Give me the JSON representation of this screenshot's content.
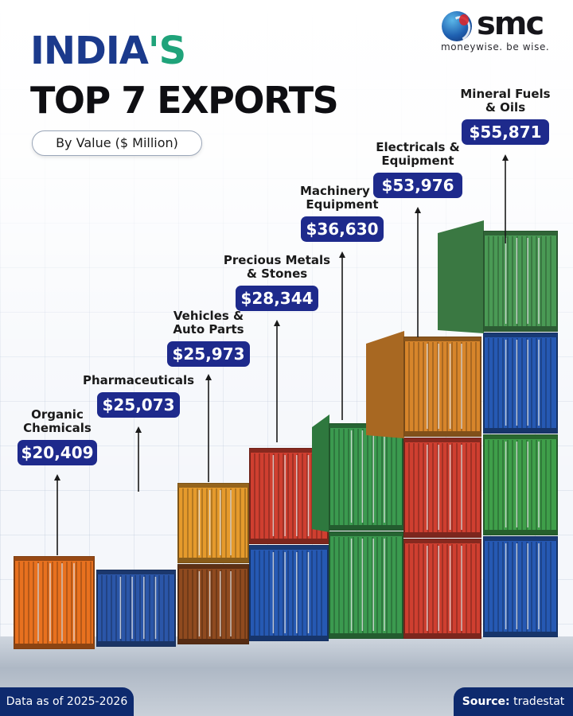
{
  "header": {
    "title_main": "INDIA",
    "title_possessive": "'S",
    "title_line2": "TOP 7 EXPORTS",
    "subtitle": "By Value ($ Million)"
  },
  "brand": {
    "name": "smc",
    "tagline": "moneywise. be wise."
  },
  "footer": {
    "data_note": "Data as of 2025-2026",
    "source_label": "Source:",
    "source_value": "tradestat"
  },
  "colors": {
    "navy": "#0e2a6e",
    "label_box": "#1e2a8c",
    "title_blue": "#1b3a8c",
    "title_green": "#1fa37a"
  },
  "chart_data": {
    "type": "bar",
    "title": "INDIA'S TOP 7 EXPORTS",
    "subtitle": "By Value ($ Million)",
    "categories": [
      [
        "Organic",
        "Chemicals"
      ],
      [
        "Pharmaceuticals"
      ],
      [
        "Vehicles &",
        "Auto Parts"
      ],
      [
        "Precious Metals",
        "& Stones"
      ],
      [
        "Machinery &",
        "Equipment"
      ],
      [
        "Electricals &",
        "Equipment"
      ],
      [
        "Mineral Fuels",
        "& Oils"
      ]
    ],
    "values": [
      20409,
      25073,
      25973,
      28344,
      36630,
      53976,
      55871
    ],
    "value_labels": [
      "$20,409",
      "$25,073",
      "$25,973",
      "$28,344",
      "$36,630",
      "$53,976",
      "$55,871"
    ],
    "bar_style": "stacked shipping containers",
    "container_colors": [
      [
        "#e8711f"
      ],
      [
        "#2b56a8"
      ],
      [
        "#8f4a1f",
        "#e59a2c"
      ],
      [
        "#2659b3",
        "#cf3f30"
      ],
      [
        "#3b9a4f",
        "#3b9a4f"
      ],
      [
        "#cf3f30",
        "#cf3f30",
        "#d7852b"
      ],
      [
        "#2659b3",
        "#3f9f4a",
        "#2659b3",
        "#4a9a55"
      ]
    ]
  }
}
